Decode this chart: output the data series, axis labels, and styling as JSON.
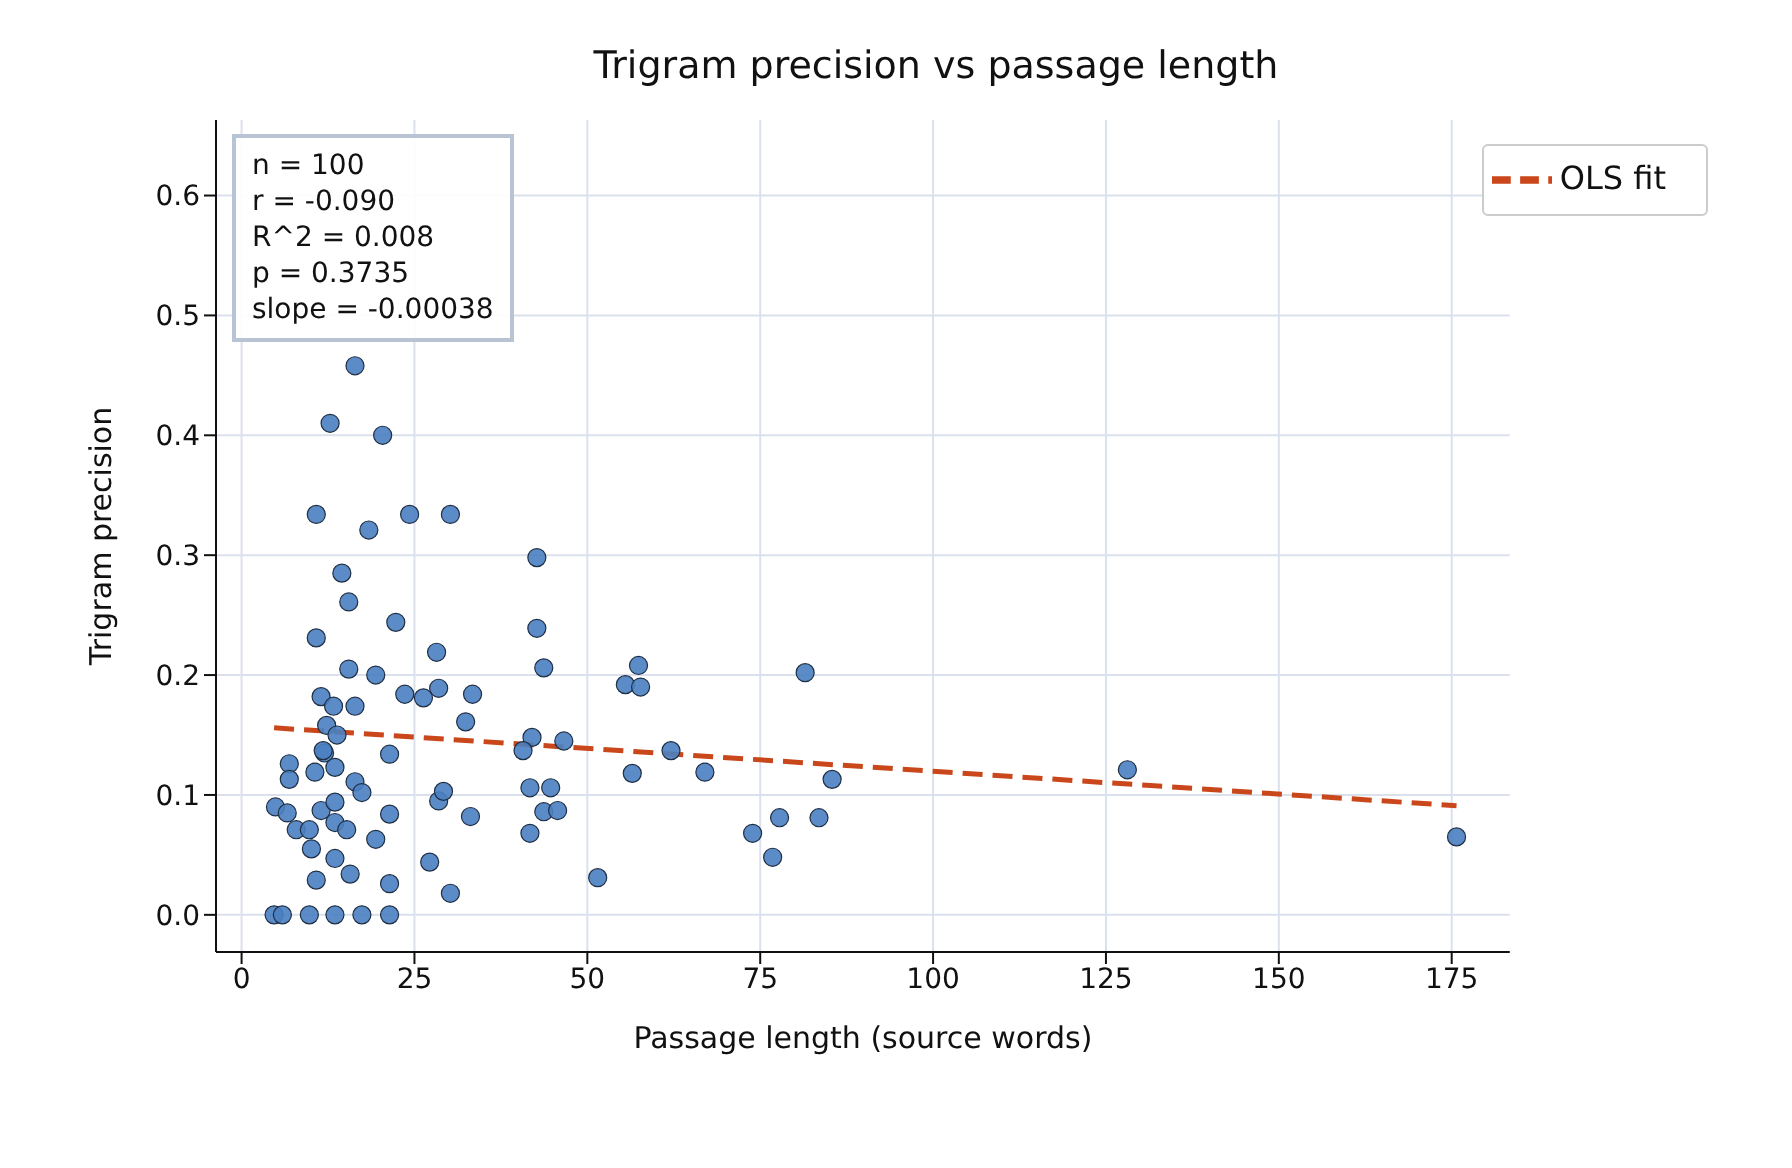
{
  "chart_data": {
    "type": "scatter",
    "title": "Trigram precision vs passage length",
    "xlabel": "Passage length (source words)",
    "ylabel": "Trigram precision",
    "annotations": [
      "n = 100",
      "r = -0.090",
      "R^2 = 0.008",
      "p = 0.3735",
      "slope = -0.00038"
    ],
    "series": [
      {
        "color": "#4a7fc1",
        "marker": "circle",
        "x": [
          4.7,
          5.9,
          9.8,
          13.5,
          17.4,
          21.4,
          4.9,
          6.9,
          6.9,
          6.6,
          7.9,
          9.8,
          10.1,
          10.8,
          10.6,
          11.5,
          12,
          13.5,
          13.5,
          13.5,
          13.5,
          15.2,
          15.7,
          16.4,
          17.4,
          19.4,
          21.4,
          21.4,
          21.4,
          27.2,
          28.5,
          29.2,
          30.2,
          33.1,
          32.4,
          33.4,
          28.5,
          26.3,
          23.6,
          28.2,
          22.3,
          19.4,
          16.4,
          15.5,
          11.5,
          13.3,
          12.3,
          13.8,
          11.8,
          10.8,
          15.5,
          14.5,
          10.8,
          18.4,
          24.3,
          30.2,
          12.8,
          20.4,
          16.4,
          42.7,
          42.7,
          43.7,
          57.4,
          55.5,
          57.7,
          81.5,
          42,
          40.7,
          46.6,
          62.1,
          56.5,
          67,
          85.4,
          41.7,
          44.7,
          43.7,
          45.7,
          41.7,
          73.9,
          77.8,
          83.5,
          76.8,
          51.5,
          128.1,
          175.7
        ],
        "values": [
          0,
          0,
          0,
          0,
          0,
          0,
          0.09,
          0.126,
          0.113,
          0.085,
          0.071,
          0.071,
          0.055,
          0.029,
          0.119,
          0.087,
          0.135,
          0.123,
          0.094,
          0.077,
          0.047,
          0.071,
          0.034,
          0.111,
          0.102,
          0.063,
          0.084,
          0.026,
          0.134,
          0.044,
          0.095,
          0.103,
          0.018,
          0.082,
          0.161,
          0.184,
          0.189,
          0.181,
          0.184,
          0.219,
          0.244,
          0.2,
          0.174,
          0.205,
          0.182,
          0.174,
          0.158,
          0.15,
          0.137,
          0.231,
          0.261,
          0.285,
          0.334,
          0.321,
          0.334,
          0.334,
          0.41,
          0.4,
          0.458,
          0.298,
          0.239,
          0.206,
          0.208,
          0.192,
          0.19,
          0.202,
          0.148,
          0.137,
          0.145,
          0.137,
          0.118,
          0.119,
          0.113,
          0.106,
          0.106,
          0.086,
          0.087,
          0.068,
          0.068,
          0.081,
          0.081,
          0.048,
          0.031,
          0.121,
          0.065
        ]
      },
      {
        "type": "line",
        "name": "OLS fit",
        "color": "#c9471a",
        "line_style": "dashed",
        "x": [
          4.7,
          175.7
        ],
        "values": [
          0.156,
          0.091
        ]
      }
    ],
    "xlim": [
      -3.7,
      183.4
    ],
    "xticks": [
      0,
      25,
      50,
      75,
      100,
      125,
      150,
      175
    ],
    "ylim": [
      -0.031,
      0.663
    ],
    "yticks": [
      {
        "value": 0,
        "label": "0.0"
      },
      {
        "value": 0.1,
        "label": "0.1"
      },
      {
        "value": 0.2,
        "label": "0.2"
      },
      {
        "value": 0.3,
        "label": "0.3"
      },
      {
        "value": 0.4,
        "label": "0.4"
      },
      {
        "value": 0.5,
        "label": "0.5"
      },
      {
        "value": 0.6,
        "label": "0.6"
      }
    ],
    "grid": true,
    "legend": "top right"
  }
}
